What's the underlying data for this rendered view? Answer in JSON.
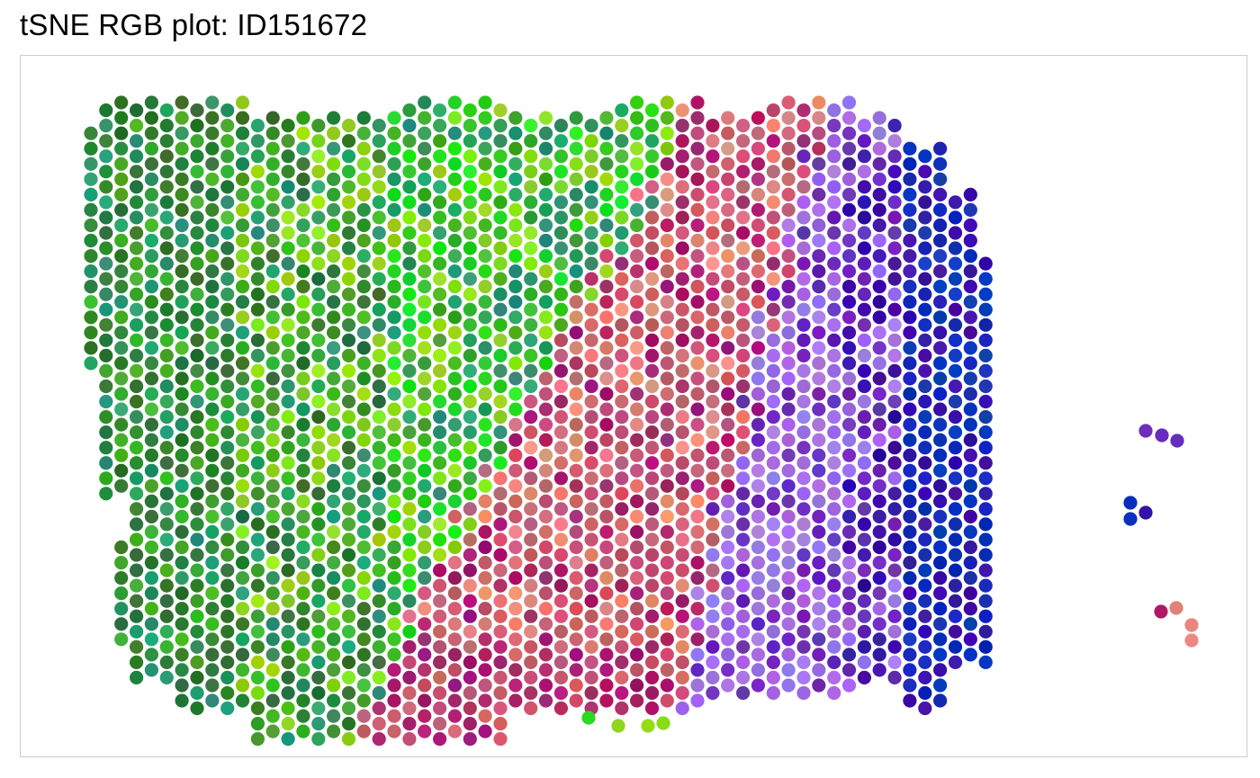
{
  "chart_data": {
    "type": "scatter",
    "title": "tSNE RGB plot: ID151672",
    "xlabel": "",
    "ylabel": "",
    "grid": false,
    "legend": "none",
    "panel_border_color": "#cccccc",
    "description_of_encoding": "",
    "grid_spec": {
      "cols": 70,
      "rows": 41,
      "note": ""
    },
    "palette": {
      "green_dark": "#2e7d32",
      "green": "#3fae2a",
      "green_bright": "#22dd22",
      "lime": "#8edc18",
      "teal_green": "#2a9a6a",
      "salmon": "#e8867a",
      "rose": "#c85a6e",
      "magenta": "#a8206e",
      "lavender": "#a070e8",
      "purple": "#6a2ab8",
      "indigo": "#3a10a8",
      "blue": "#1030b8"
    }
  }
}
